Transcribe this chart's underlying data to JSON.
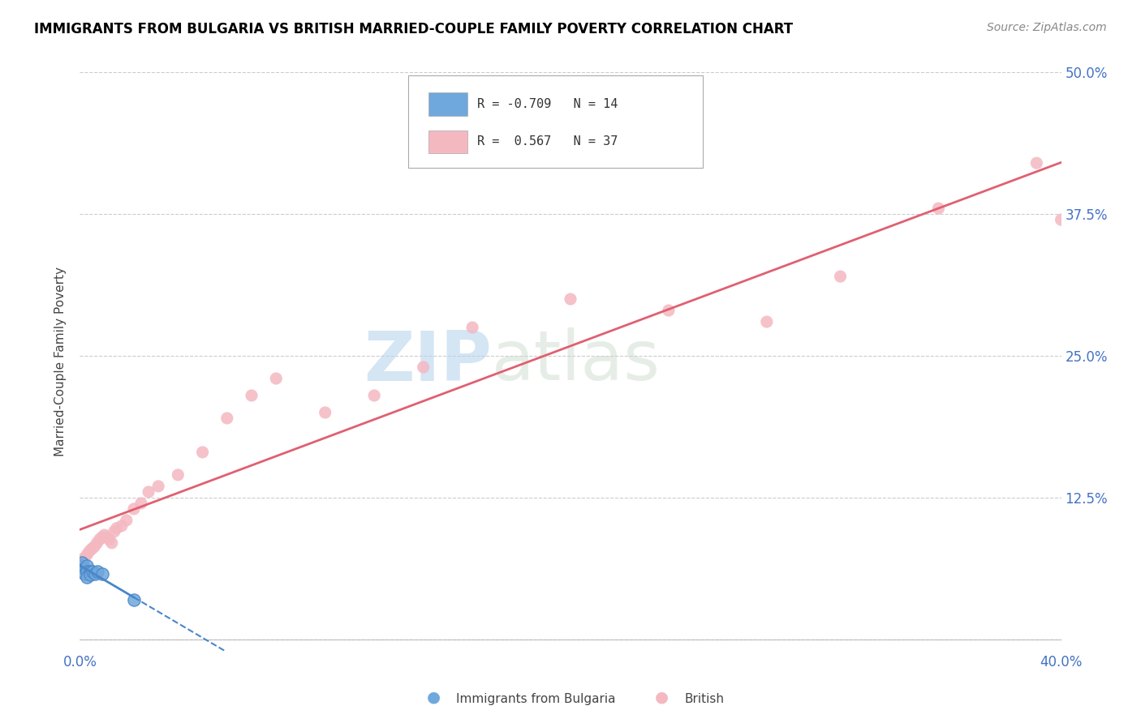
{
  "title": "IMMIGRANTS FROM BULGARIA VS BRITISH MARRIED-COUPLE FAMILY POVERTY CORRELATION CHART",
  "source": "Source: ZipAtlas.com",
  "ylabel": "Married-Couple Family Poverty",
  "xlim": [
    0,
    0.4
  ],
  "ylim": [
    -0.01,
    0.5
  ],
  "r_bulgaria": -0.709,
  "n_bulgaria": 14,
  "r_british": 0.567,
  "n_british": 37,
  "bulgaria_color": "#6fa8dc",
  "british_color": "#f4b8c1",
  "bulgaria_line_color": "#4a86c8",
  "british_line_color": "#e06070",
  "background_color": "#ffffff",
  "grid_color": "#cccccc",
  "title_color": "#000000",
  "source_color": "#888888",
  "tick_color": "#4472c4",
  "y_ticks": [
    0.0,
    0.125,
    0.25,
    0.375,
    0.5
  ],
  "y_tick_labels": [
    "",
    "12.5%",
    "25.0%",
    "37.5%",
    "50.0%"
  ],
  "x_ticks": [
    0.0,
    0.4
  ],
  "x_tick_labels": [
    "0.0%",
    "40.0%"
  ],
  "bulgaria_x": [
    0.0,
    0.001,
    0.002,
    0.002,
    0.003,
    0.003,
    0.003,
    0.004,
    0.004,
    0.005,
    0.006,
    0.007,
    0.009,
    0.022
  ],
  "bulgaria_y": [
    0.065,
    0.068,
    0.062,
    0.058,
    0.065,
    0.06,
    0.055,
    0.06,
    0.057,
    0.06,
    0.058,
    0.06,
    0.058,
    0.035
  ],
  "british_x": [
    0.0,
    0.002,
    0.003,
    0.004,
    0.005,
    0.006,
    0.007,
    0.008,
    0.009,
    0.01,
    0.011,
    0.012,
    0.013,
    0.014,
    0.015,
    0.017,
    0.019,
    0.022,
    0.025,
    0.028,
    0.032,
    0.04,
    0.05,
    0.06,
    0.07,
    0.08,
    0.1,
    0.12,
    0.14,
    0.16,
    0.2,
    0.24,
    0.28,
    0.31,
    0.35,
    0.39,
    0.4
  ],
  "british_y": [
    0.07,
    0.072,
    0.075,
    0.078,
    0.08,
    0.082,
    0.085,
    0.088,
    0.09,
    0.092,
    0.09,
    0.088,
    0.085,
    0.095,
    0.098,
    0.1,
    0.105,
    0.115,
    0.12,
    0.13,
    0.135,
    0.145,
    0.165,
    0.195,
    0.215,
    0.23,
    0.2,
    0.215,
    0.24,
    0.275,
    0.3,
    0.29,
    0.28,
    0.32,
    0.38,
    0.42,
    0.37
  ],
  "watermark_zip": "ZIP",
  "watermark_atlas": "atlas"
}
